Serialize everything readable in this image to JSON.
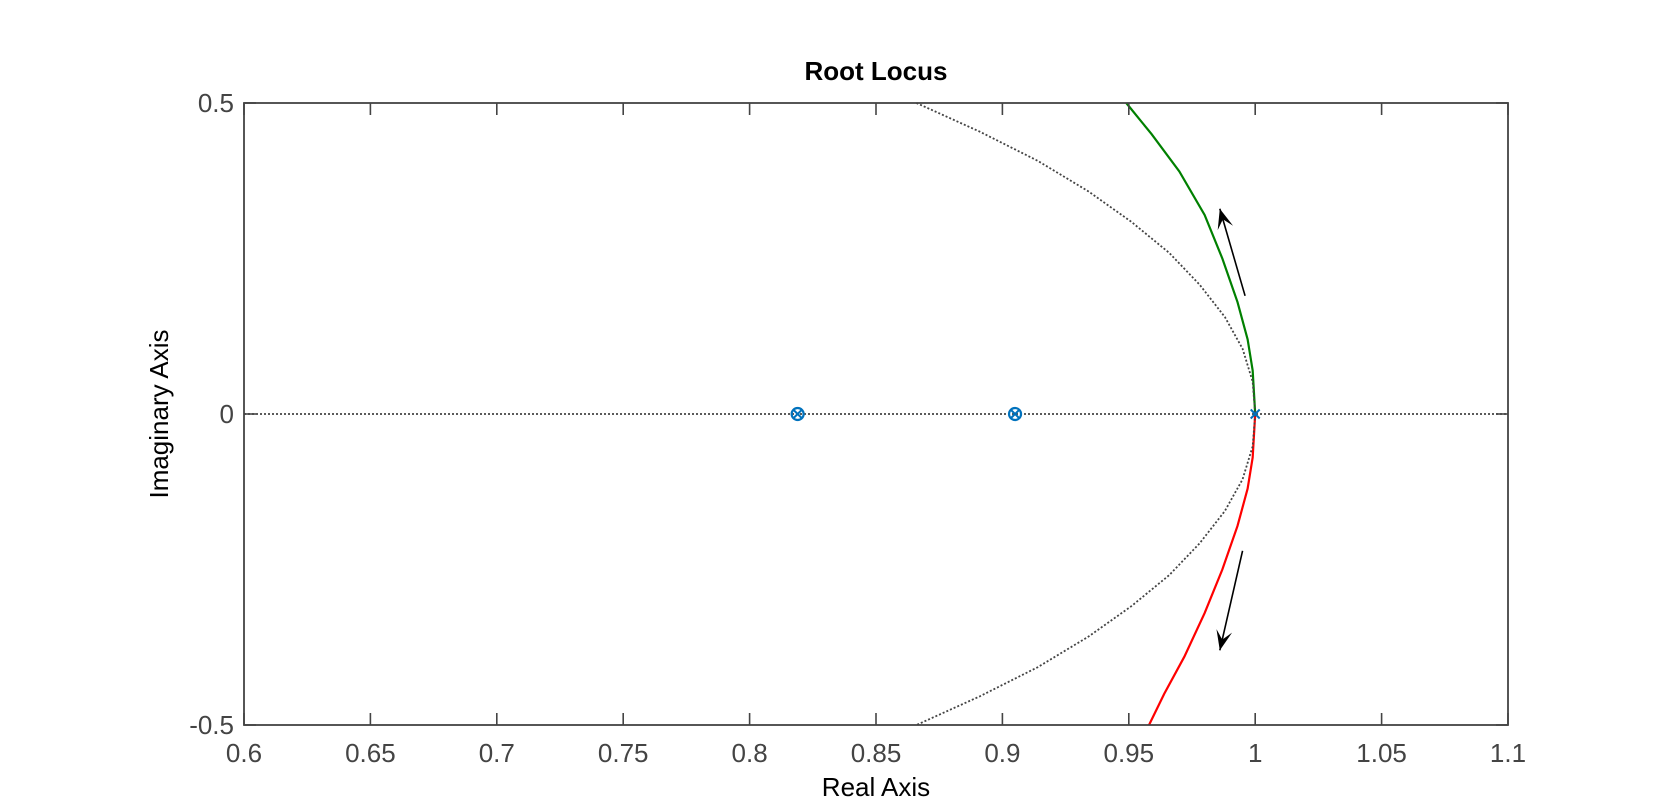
{
  "chart_data": {
    "type": "scatter",
    "title": "Root Locus",
    "xlabel": "Real Axis",
    "ylabel": "Imaginary Axis",
    "xlim": [
      0.6,
      1.1
    ],
    "ylim": [
      -0.5,
      0.5
    ],
    "xticks": [
      0.6,
      0.65,
      0.7,
      0.75,
      0.8,
      0.85,
      0.9,
      0.95,
      1,
      1.05,
      1.1
    ],
    "xtick_labels": [
      "0.6",
      "0.65",
      "0.7",
      "0.75",
      "0.8",
      "0.85",
      "0.9",
      "0.95",
      "1",
      "1.05",
      "1.1"
    ],
    "yticks": [
      -0.5,
      0,
      0.5
    ],
    "ytick_labels": [
      "-0.5",
      "0",
      "0.5"
    ],
    "grid": false,
    "series": [
      {
        "kind": "locus-branch",
        "color": "#008000",
        "points": [
          [
            1.0,
            0.0
          ],
          [
            0.999,
            0.07
          ],
          [
            0.997,
            0.12
          ],
          [
            0.993,
            0.18
          ],
          [
            0.987,
            0.25
          ],
          [
            0.98,
            0.32
          ],
          [
            0.97,
            0.39
          ],
          [
            0.959,
            0.45
          ],
          [
            0.949,
            0.5
          ]
        ]
      },
      {
        "kind": "locus-branch",
        "color": "#ff0000",
        "points": [
          [
            1.0,
            0.0
          ],
          [
            0.999,
            -0.07
          ],
          [
            0.997,
            -0.12
          ],
          [
            0.993,
            -0.18
          ],
          [
            0.987,
            -0.25
          ],
          [
            0.98,
            -0.32
          ],
          [
            0.972,
            -0.39
          ],
          [
            0.964,
            -0.45
          ],
          [
            0.958,
            -0.5
          ]
        ]
      },
      {
        "kind": "unit-circle",
        "color": "#444444",
        "style": "dotted",
        "points": [
          [
            0.866,
            0.5
          ],
          [
            0.891,
            0.454
          ],
          [
            0.914,
            0.407
          ],
          [
            0.934,
            0.358
          ],
          [
            0.951,
            0.309
          ],
          [
            0.966,
            0.259
          ],
          [
            0.978,
            0.208
          ],
          [
            0.988,
            0.156
          ],
          [
            0.995,
            0.105
          ],
          [
            0.999,
            0.052
          ],
          [
            1.0,
            0.0
          ],
          [
            0.999,
            -0.052
          ],
          [
            0.995,
            -0.105
          ],
          [
            0.988,
            -0.156
          ],
          [
            0.978,
            -0.208
          ],
          [
            0.966,
            -0.259
          ],
          [
            0.951,
            -0.309
          ],
          [
            0.934,
            -0.358
          ],
          [
            0.914,
            -0.407
          ],
          [
            0.891,
            -0.454
          ],
          [
            0.866,
            -0.5
          ]
        ]
      },
      {
        "kind": "real-axis",
        "color": "#444444",
        "style": "dotted",
        "points": [
          [
            0.6,
            0.0
          ],
          [
            1.1,
            0.0
          ]
        ]
      }
    ],
    "poles": [
      [
        0.819,
        0.0
      ],
      [
        0.905,
        0.0
      ],
      [
        1.0,
        0.0
      ]
    ],
    "zeros": [
      [
        0.819,
        0.0
      ],
      [
        0.905,
        0.0
      ]
    ],
    "arrows": [
      {
        "from": [
          0.996,
          0.19
        ],
        "to": [
          0.986,
          0.33
        ]
      },
      {
        "from": [
          0.995,
          -0.22
        ],
        "to": [
          0.986,
          -0.38
        ]
      }
    ],
    "marker_color": "#0072bd",
    "arrow_color": "#000000",
    "axes_color": "#444444"
  }
}
